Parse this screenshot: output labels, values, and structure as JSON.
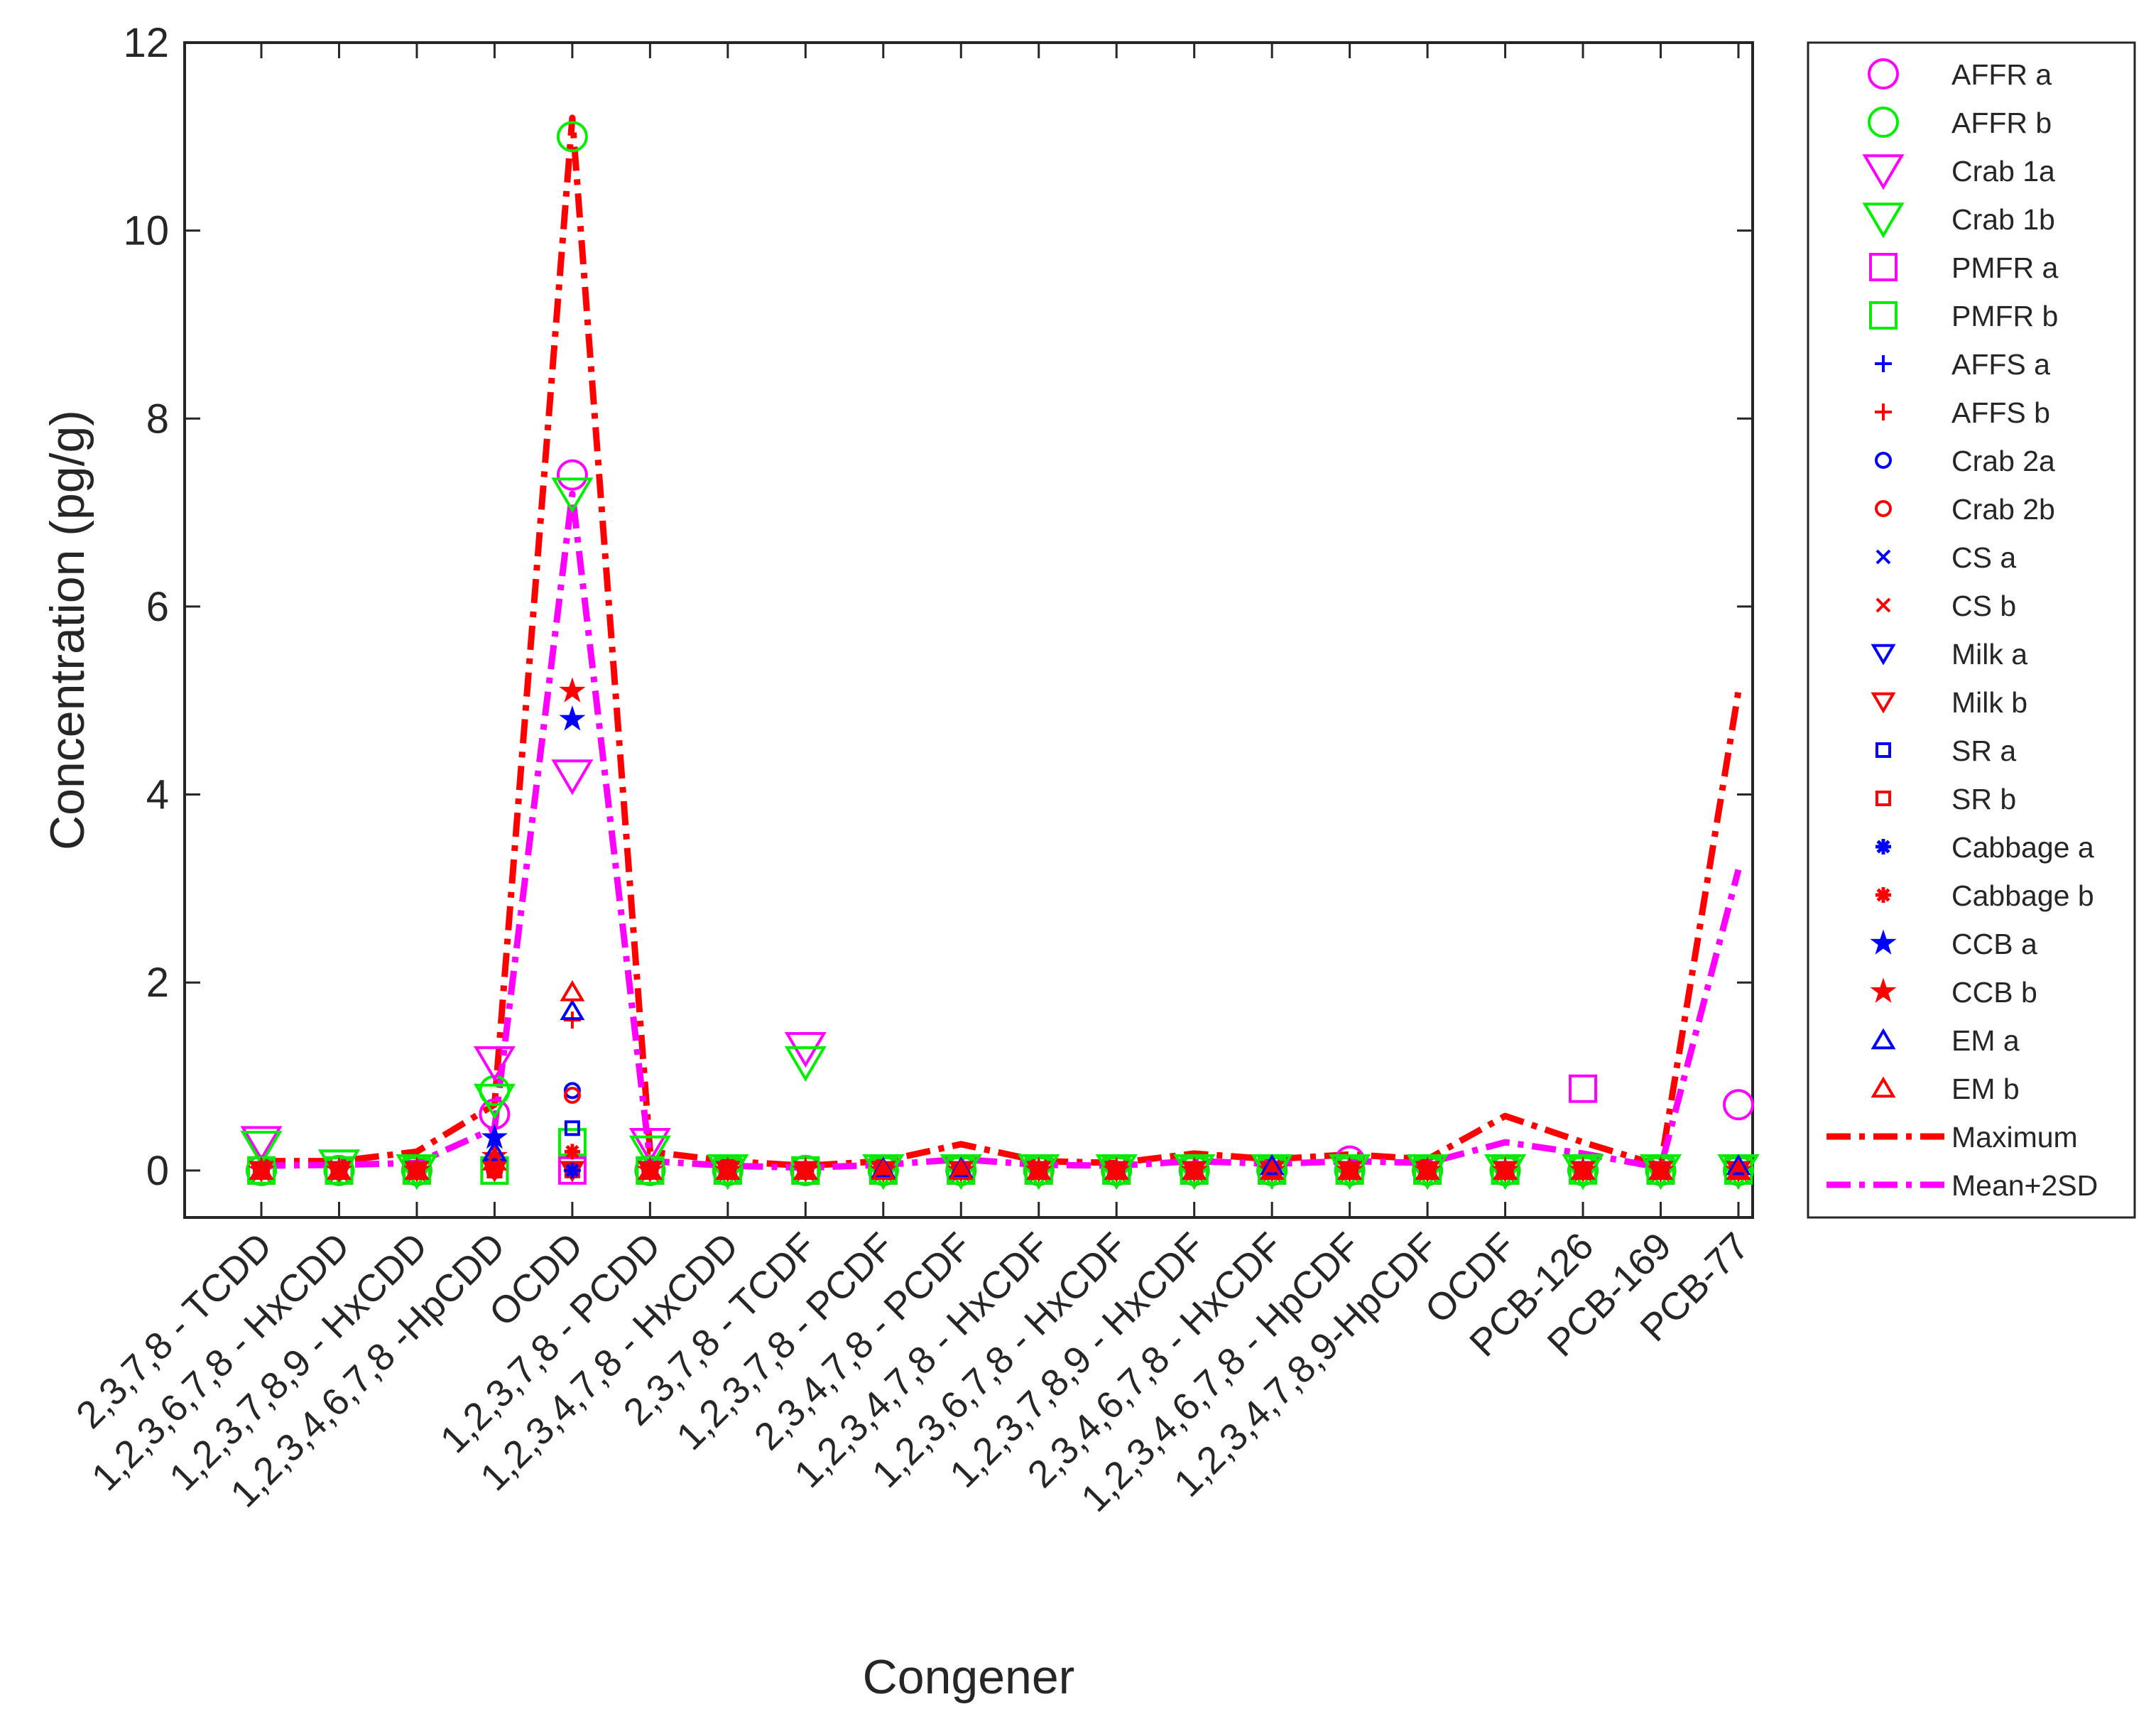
{
  "chart_data": {
    "type": "scatter",
    "title": "",
    "xlabel": "Congener",
    "ylabel": "Concentration (pg/g)",
    "ylim": [
      -0.5,
      12
    ],
    "yticks": [
      0,
      2,
      4,
      6,
      8,
      10,
      12
    ],
    "grid": false,
    "legend_position": "outside-right",
    "categories": [
      "2,3,7,8 - TCDD",
      "1,2,3,6,7,8 - HxCDD",
      "1,2,3,7,8,9 - HxCDD",
      "1,2,3,4,6,7,8 -HpCDD",
      "OCDD",
      "1,2,3,7,8 - PCDD",
      "1,2,3,4,7,8 - HxCDD",
      "2,3,7,8 - TCDF",
      "1,2,3,7,8 - PCDF",
      "2,3,4,7,8 - PCDF",
      "1,2,3,4,7,8 - HxCDF",
      "1,2,3,6,7,8 - HxCDF",
      "1,2,3,7,8,9 - HxCDF",
      "2,3,4,6,7,8 - HxCDF",
      "1,2,3,4,6,7,8 - HpCDF",
      "1,2,3,4,7,8,9-HpCDF",
      "OCDF",
      "PCB-126",
      "PCB-169",
      "PCB-77"
    ],
    "series": [
      {
        "name": "AFFR a",
        "marker": "circle",
        "size": "large",
        "color": "#ff00ff",
        "values": [
          0,
          0,
          0,
          0.6,
          7.4,
          0,
          0,
          0,
          0,
          0,
          0,
          0,
          0,
          0,
          0.1,
          0,
          0,
          0,
          0,
          0.7
        ]
      },
      {
        "name": "AFFR b",
        "marker": "circle",
        "size": "large",
        "color": "#00ee00",
        "values": [
          0,
          0,
          0,
          0.85,
          11,
          0,
          0,
          0,
          0,
          0,
          0,
          0,
          0,
          0,
          0,
          0,
          0,
          0,
          0,
          0
        ]
      },
      {
        "name": "Crab 1a",
        "marker": "triangle-down",
        "size": "large",
        "color": "#ff00ff",
        "values": [
          0.3,
          0.05,
          0,
          1.15,
          4.2,
          0.28,
          0,
          1.3,
          0,
          0,
          0,
          0,
          0,
          0,
          0,
          0,
          0,
          0,
          0,
          0
        ]
      },
      {
        "name": "Crab 1b",
        "marker": "triangle-down",
        "size": "large",
        "color": "#00ee00",
        "values": [
          0.25,
          0.05,
          0,
          0.75,
          7.2,
          0.2,
          0,
          1.15,
          0,
          0,
          0,
          0,
          0,
          0,
          0,
          0,
          0,
          0,
          0,
          0
        ]
      },
      {
        "name": "PMFR a",
        "marker": "square",
        "size": "large",
        "color": "#ff00ff",
        "values": [
          0,
          0,
          0,
          0,
          0,
          0,
          0,
          0,
          0,
          0,
          0,
          0,
          0,
          0,
          0,
          0,
          0,
          0.87,
          0,
          0
        ]
      },
      {
        "name": "PMFR b",
        "marker": "square",
        "size": "large",
        "color": "#00ee00",
        "values": [
          0,
          0,
          0,
          0,
          0.3,
          0,
          0,
          0,
          0,
          0,
          0,
          0,
          0,
          0,
          0,
          0,
          0,
          0,
          0,
          0
        ]
      },
      {
        "name": "AFFS a",
        "marker": "plus",
        "size": "small",
        "color": "#0000ff",
        "values": [
          0,
          0,
          0,
          0,
          0,
          0,
          0,
          0,
          0,
          0,
          0,
          0,
          0,
          0,
          0,
          0,
          0,
          0,
          0,
          0
        ]
      },
      {
        "name": "AFFS b",
        "marker": "plus",
        "size": "small",
        "color": "#ff0000",
        "values": [
          0,
          0,
          0,
          0,
          1.6,
          0,
          0,
          0,
          0,
          0,
          0,
          0,
          0,
          0,
          0,
          0,
          0,
          0,
          0,
          0
        ]
      },
      {
        "name": "Crab 2a",
        "marker": "circle",
        "size": "small",
        "color": "#0000ff",
        "values": [
          0,
          0,
          0,
          0,
          0.85,
          0,
          0,
          0,
          0,
          0,
          0,
          0,
          0,
          0,
          0,
          0,
          0,
          0,
          0,
          0
        ]
      },
      {
        "name": "Crab 2b",
        "marker": "circle",
        "size": "small",
        "color": "#ff0000",
        "values": [
          0,
          0,
          0,
          0,
          0.8,
          0,
          0,
          0,
          0,
          0,
          0,
          0,
          0,
          0,
          0,
          0,
          0,
          0,
          0,
          0
        ]
      },
      {
        "name": "CS a",
        "marker": "x",
        "size": "small",
        "color": "#0000ff",
        "values": [
          0,
          0,
          0,
          0,
          0,
          0,
          0,
          0,
          0,
          0,
          0,
          0,
          0,
          0,
          0,
          0,
          0,
          0,
          0,
          0
        ]
      },
      {
        "name": "CS b",
        "marker": "x",
        "size": "small",
        "color": "#ff0000",
        "values": [
          0,
          0,
          0,
          0,
          0,
          0,
          0,
          0,
          0,
          0,
          0,
          0,
          0,
          0,
          0,
          0,
          0,
          0,
          0,
          0
        ]
      },
      {
        "name": "Milk a",
        "marker": "triangle-down",
        "size": "small",
        "color": "#0000ff",
        "values": [
          0,
          0,
          0,
          0,
          0,
          0,
          0,
          0,
          0,
          0,
          0,
          0,
          0,
          0,
          0,
          0,
          0,
          0,
          0,
          0
        ]
      },
      {
        "name": "Milk b",
        "marker": "triangle-down",
        "size": "small",
        "color": "#ff0000",
        "values": [
          0,
          0,
          0,
          0,
          0,
          0,
          0,
          0,
          0,
          0,
          0,
          0,
          0,
          0,
          0,
          0,
          0,
          0,
          0,
          0
        ]
      },
      {
        "name": "SR a",
        "marker": "square",
        "size": "small",
        "color": "#0000ff",
        "values": [
          0,
          0,
          0,
          0,
          0.45,
          0,
          0,
          0,
          0,
          0,
          0,
          0,
          0,
          0,
          0,
          0,
          0,
          0,
          0,
          0
        ]
      },
      {
        "name": "SR b",
        "marker": "square",
        "size": "small",
        "color": "#ff0000",
        "values": [
          0,
          0,
          0,
          0,
          0,
          0,
          0,
          0,
          0,
          0,
          0,
          0,
          0,
          0,
          0,
          0,
          0,
          0,
          0,
          0
        ]
      },
      {
        "name": "Cabbage a",
        "marker": "asterisk",
        "size": "small",
        "color": "#0000ff",
        "values": [
          0,
          0,
          0,
          0,
          0,
          0,
          0,
          0,
          0,
          0,
          0,
          0,
          0,
          0,
          0,
          0,
          0,
          0,
          0,
          0
        ]
      },
      {
        "name": "Cabbage b",
        "marker": "asterisk",
        "size": "small",
        "color": "#ff0000",
        "values": [
          0,
          0,
          0,
          0,
          0.2,
          0,
          0,
          0,
          0,
          0,
          0,
          0,
          0,
          0,
          0,
          0,
          0,
          0,
          0,
          0
        ]
      },
      {
        "name": "CCB a",
        "marker": "star",
        "size": "small",
        "color": "#0000ff",
        "values": [
          0,
          0,
          0,
          0.35,
          4.8,
          0,
          0,
          0,
          0,
          0,
          0,
          0,
          0,
          0,
          0,
          0,
          0,
          0,
          0,
          0
        ]
      },
      {
        "name": "CCB b",
        "marker": "star",
        "size": "small",
        "color": "#ff0000",
        "values": [
          0,
          0,
          0,
          0.15,
          5.1,
          0,
          0,
          0,
          0,
          0,
          0,
          0,
          0,
          0,
          0,
          0,
          0,
          0,
          0,
          0
        ]
      },
      {
        "name": "EM a",
        "marker": "triangle-up",
        "size": "small",
        "color": "#0000ff",
        "values": [
          0,
          0,
          0,
          0.2,
          1.7,
          0,
          0,
          0,
          0.02,
          0.02,
          0,
          0,
          0,
          0.05,
          0,
          0,
          0,
          0,
          0,
          0.05
        ]
      },
      {
        "name": "EM b",
        "marker": "triangle-up",
        "size": "small",
        "color": "#ff0000",
        "values": [
          0,
          0,
          0,
          0.1,
          1.9,
          0,
          0,
          0,
          0,
          0,
          0,
          0,
          0,
          0,
          0,
          0,
          0,
          0,
          0,
          0
        ]
      }
    ],
    "lines": [
      {
        "name": "Maximum",
        "style": "dash-dot",
        "color": "#ff0000",
        "values": [
          0.1,
          0.1,
          0.2,
          0.7,
          11.2,
          0.2,
          0.1,
          0.05,
          0.1,
          0.28,
          0.1,
          0.08,
          0.18,
          0.12,
          0.17,
          0.12,
          0.58,
          0.3,
          0.05,
          5.1
        ]
      },
      {
        "name": "Mean+2SD",
        "style": "dash-dot",
        "color": "#ff00ff",
        "values": [
          0.05,
          0.06,
          0.08,
          0.45,
          7.2,
          0.1,
          0.05,
          0.03,
          0.06,
          0.12,
          0.06,
          0.05,
          0.1,
          0.07,
          0.1,
          0.08,
          0.3,
          0.18,
          0.03,
          3.2
        ]
      }
    ]
  }
}
